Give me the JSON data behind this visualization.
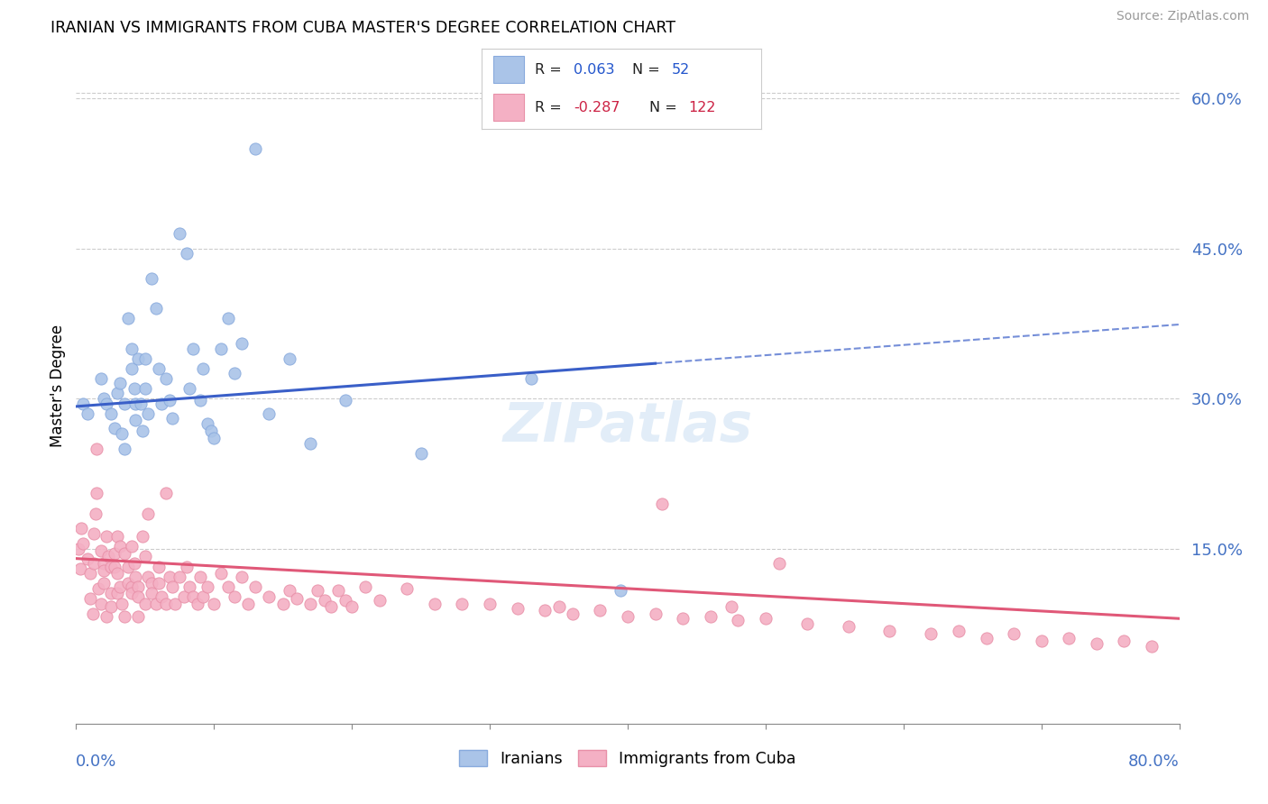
{
  "title": "IRANIAN VS IMMIGRANTS FROM CUBA MASTER'S DEGREE CORRELATION CHART",
  "source": "Source: ZipAtlas.com",
  "ylabel": "Master's Degree",
  "right_yticks": [
    0.15,
    0.3,
    0.45,
    0.6
  ],
  "right_ytick_labels": [
    "15.0%",
    "30.0%",
    "45.0%",
    "60.0%"
  ],
  "watermark": "ZIPatlas",
  "iranian_R": 0.063,
  "iranian_N": 52,
  "cuba_R": -0.287,
  "cuba_N": 122,
  "blue_line_color": "#3a5fc8",
  "pink_line_color": "#e05878",
  "blue_scatter_color": "#aac4e8",
  "pink_scatter_color": "#f4b0c4",
  "blue_edge_color": "#88aadd",
  "pink_edge_color": "#e890a8",
  "xmin": 0.0,
  "xmax": 0.8,
  "ymin": -0.025,
  "ymax": 0.65,
  "blue_line_start_y": 0.292,
  "blue_line_end_y": 0.335,
  "blue_line_x_end": 0.42,
  "pink_line_start_y": 0.14,
  "pink_line_end_y": 0.08,
  "iranian_x": [
    0.005,
    0.008,
    0.018,
    0.02,
    0.022,
    0.025,
    0.028,
    0.03,
    0.032,
    0.033,
    0.035,
    0.035,
    0.038,
    0.04,
    0.04,
    0.042,
    0.043,
    0.043,
    0.045,
    0.047,
    0.048,
    0.05,
    0.05,
    0.052,
    0.055,
    0.058,
    0.06,
    0.062,
    0.065,
    0.068,
    0.07,
    0.075,
    0.08,
    0.082,
    0.085,
    0.09,
    0.092,
    0.095,
    0.098,
    0.1,
    0.105,
    0.11,
    0.115,
    0.12,
    0.13,
    0.14,
    0.155,
    0.17,
    0.195,
    0.25,
    0.33,
    0.395
  ],
  "iranian_y": [
    0.295,
    0.285,
    0.32,
    0.3,
    0.295,
    0.285,
    0.27,
    0.305,
    0.315,
    0.265,
    0.295,
    0.25,
    0.38,
    0.35,
    0.33,
    0.31,
    0.295,
    0.278,
    0.34,
    0.295,
    0.268,
    0.34,
    0.31,
    0.285,
    0.42,
    0.39,
    0.33,
    0.295,
    0.32,
    0.298,
    0.28,
    0.465,
    0.445,
    0.31,
    0.35,
    0.298,
    0.33,
    0.275,
    0.268,
    0.26,
    0.35,
    0.38,
    0.325,
    0.355,
    0.55,
    0.285,
    0.34,
    0.255,
    0.298,
    0.245,
    0.32,
    0.108
  ],
  "cuba_x": [
    0.002,
    0.003,
    0.004,
    0.005,
    0.008,
    0.01,
    0.01,
    0.012,
    0.013,
    0.013,
    0.014,
    0.015,
    0.015,
    0.016,
    0.018,
    0.018,
    0.02,
    0.02,
    0.02,
    0.022,
    0.022,
    0.023,
    0.025,
    0.025,
    0.025,
    0.028,
    0.028,
    0.03,
    0.03,
    0.03,
    0.032,
    0.032,
    0.033,
    0.035,
    0.035,
    0.038,
    0.038,
    0.04,
    0.04,
    0.04,
    0.042,
    0.043,
    0.045,
    0.045,
    0.045,
    0.048,
    0.05,
    0.05,
    0.052,
    0.052,
    0.055,
    0.055,
    0.058,
    0.06,
    0.06,
    0.062,
    0.065,
    0.065,
    0.068,
    0.07,
    0.072,
    0.075,
    0.078,
    0.08,
    0.082,
    0.085,
    0.088,
    0.09,
    0.092,
    0.095,
    0.1,
    0.105,
    0.11,
    0.115,
    0.12,
    0.125,
    0.13,
    0.14,
    0.15,
    0.155,
    0.16,
    0.17,
    0.175,
    0.18,
    0.185,
    0.19,
    0.195,
    0.2,
    0.21,
    0.22,
    0.24,
    0.26,
    0.28,
    0.3,
    0.32,
    0.34,
    0.36,
    0.38,
    0.4,
    0.42,
    0.44,
    0.46,
    0.48,
    0.5,
    0.53,
    0.56,
    0.59,
    0.62,
    0.64,
    0.66,
    0.68,
    0.7,
    0.72,
    0.74,
    0.76,
    0.78,
    0.35,
    0.425,
    0.51,
    0.475
  ],
  "cuba_y": [
    0.15,
    0.13,
    0.17,
    0.155,
    0.14,
    0.125,
    0.1,
    0.085,
    0.165,
    0.135,
    0.185,
    0.205,
    0.25,
    0.11,
    0.095,
    0.148,
    0.135,
    0.128,
    0.115,
    0.082,
    0.162,
    0.142,
    0.132,
    0.105,
    0.092,
    0.145,
    0.132,
    0.125,
    0.105,
    0.162,
    0.152,
    0.112,
    0.095,
    0.082,
    0.145,
    0.132,
    0.115,
    0.112,
    0.105,
    0.152,
    0.135,
    0.122,
    0.112,
    0.102,
    0.082,
    0.162,
    0.142,
    0.095,
    0.185,
    0.122,
    0.115,
    0.105,
    0.095,
    0.132,
    0.115,
    0.102,
    0.095,
    0.205,
    0.122,
    0.112,
    0.095,
    0.122,
    0.102,
    0.132,
    0.112,
    0.102,
    0.095,
    0.122,
    0.102,
    0.112,
    0.095,
    0.125,
    0.112,
    0.102,
    0.122,
    0.095,
    0.112,
    0.102,
    0.095,
    0.108,
    0.1,
    0.095,
    0.108,
    0.098,
    0.092,
    0.108,
    0.098,
    0.092,
    0.112,
    0.098,
    0.11,
    0.095,
    0.095,
    0.095,
    0.09,
    0.088,
    0.085,
    0.088,
    0.082,
    0.085,
    0.08,
    0.082,
    0.078,
    0.08,
    0.075,
    0.072,
    0.068,
    0.065,
    0.068,
    0.06,
    0.065,
    0.058,
    0.06,
    0.055,
    0.058,
    0.052,
    0.092,
    0.195,
    0.135,
    0.092
  ]
}
